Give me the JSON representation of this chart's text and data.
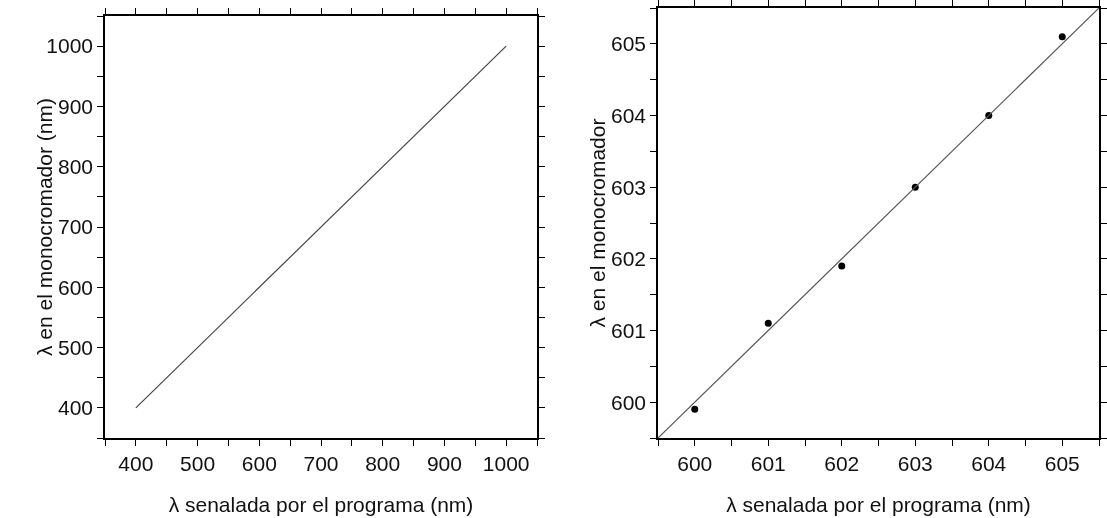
{
  "chart_data": [
    {
      "type": "line",
      "xlabel": "λ senalada por el programa (nm)",
      "ylabel": "λ en el monocromador (nm)",
      "x": [
        400,
        1000
      ],
      "series": [
        {
          "color": "#444444",
          "values": [
            400,
            1000
          ]
        }
      ],
      "xlim": [
        350,
        1050
      ],
      "ylim": [
        350,
        1050
      ],
      "xticks": [
        {
          "value": 350,
          "label": null
        },
        400,
        {
          "value": 450,
          "label": null
        },
        500,
        {
          "value": 550,
          "label": null
        },
        600,
        {
          "value": 650,
          "label": null
        },
        700,
        {
          "value": 750,
          "label": null
        },
        800,
        {
          "value": 850,
          "label": null
        },
        900,
        {
          "value": 950,
          "label": null
        },
        1000,
        {
          "value": 1050,
          "label": null
        }
      ],
      "yticks": [
        {
          "value": 350,
          "label": null
        },
        400,
        {
          "value": 450,
          "label": null
        },
        500,
        {
          "value": 550,
          "label": null
        },
        600,
        {
          "value": 650,
          "label": null
        },
        700,
        {
          "value": 750,
          "label": null
        },
        800,
        {
          "value": 850,
          "label": null
        },
        900,
        {
          "value": 950,
          "label": null
        },
        1000,
        {
          "value": 1050,
          "label": null
        }
      ]
    },
    {
      "type": "scatter",
      "xlabel": "λ senalada por el programa (nm)",
      "ylabel": "λ en el monocromador",
      "marker": "circle",
      "x": [
        600,
        601,
        602,
        603,
        604,
        605
      ],
      "series": [
        {
          "color": "#000000",
          "values": [
            599.9,
            601.1,
            601.9,
            603.0,
            604.0,
            605.1
          ]
        },
        {
          "type": "line",
          "marker": "none",
          "color": "#555555",
          "x": [
            599.5,
            605.5
          ],
          "values": [
            599.5,
            605.5
          ]
        }
      ],
      "xlim": [
        599.5,
        605.5
      ],
      "ylim": [
        599.5,
        605.5
      ],
      "xticks": [
        {
          "value": 599.5,
          "label": null
        },
        600,
        {
          "value": 600.5,
          "label": null
        },
        601,
        {
          "value": 601.5,
          "label": null
        },
        602,
        {
          "value": 602.5,
          "label": null
        },
        603,
        {
          "value": 603.5,
          "label": null
        },
        604,
        {
          "value": 604.5,
          "label": null
        },
        605,
        {
          "value": 605.5,
          "label": null
        }
      ],
      "yticks": [
        {
          "value": 599.5,
          "label": null
        },
        600,
        {
          "value": 600.5,
          "label": null
        },
        601,
        {
          "value": 601.5,
          "label": null
        },
        602,
        {
          "value": 602.5,
          "label": null
        },
        603,
        {
          "value": 603.5,
          "label": null
        },
        604,
        {
          "value": 604.5,
          "label": null
        },
        605,
        {
          "value": 605.5,
          "label": null
        }
      ]
    }
  ]
}
